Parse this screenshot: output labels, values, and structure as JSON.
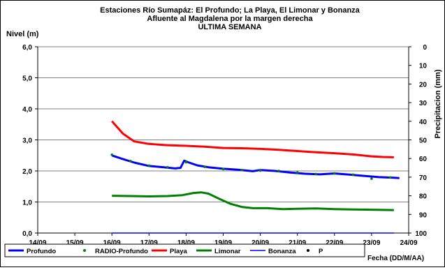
{
  "chart_data": {
    "type": "line",
    "title": [
      "Estaciones Río Sumapáz: El Profundo; La Playa, El Limonar y Bonanza",
      "Afluente al Magdalena por la margen derecha",
      "ULTIMA SEMANA"
    ],
    "ylabel": "Nivel (m)",
    "y2label": "Precipitacion (mm)",
    "xlabel": "Fecha (DD/M/AA)",
    "x_ticks": [
      "14/09",
      "15/09",
      "16/09",
      "17/09",
      "18/09",
      "19/09",
      "20/09",
      "21/09",
      "22/09",
      "23/09",
      "24/09"
    ],
    "y_ticks": [
      "0,0",
      "1,0",
      "2,0",
      "3,0",
      "4,0",
      "5,0",
      "6,0"
    ],
    "y2_ticks": [
      "0",
      "10",
      "20",
      "30",
      "40",
      "50",
      "60",
      "70",
      "80",
      "90",
      "100"
    ],
    "ylim": [
      0,
      6
    ],
    "y2lim": [
      0,
      100
    ],
    "xlim": [
      0,
      10
    ],
    "grid": "horizontal",
    "legend_position": "bottom",
    "series": [
      {
        "name": "Profundo",
        "color": "#0000ff",
        "style": "line",
        "points": [
          [
            2.0,
            2.5
          ],
          [
            2.3,
            2.38
          ],
          [
            2.6,
            2.27
          ],
          [
            3.0,
            2.16
          ],
          [
            3.4,
            2.12
          ],
          [
            3.7,
            2.08
          ],
          [
            3.85,
            2.1
          ],
          [
            3.95,
            2.33
          ],
          [
            4.05,
            2.28
          ],
          [
            4.3,
            2.18
          ],
          [
            4.6,
            2.12
          ],
          [
            5.0,
            2.07
          ],
          [
            5.4,
            2.04
          ],
          [
            5.8,
            1.99
          ],
          [
            6.0,
            2.03
          ],
          [
            6.4,
            2.0
          ],
          [
            6.8,
            1.95
          ],
          [
            7.2,
            1.91
          ],
          [
            7.6,
            1.89
          ],
          [
            8.0,
            1.92
          ],
          [
            8.4,
            1.88
          ],
          [
            8.8,
            1.84
          ],
          [
            9.2,
            1.8
          ],
          [
            9.6,
            1.78
          ],
          [
            9.75,
            1.77
          ]
        ]
      },
      {
        "name": "RADIO-Profundo",
        "color": "#008000",
        "style": "dots",
        "points": [
          [
            2.0,
            2.52
          ],
          [
            2.5,
            2.32
          ],
          [
            3.0,
            2.17
          ],
          [
            3.5,
            2.12
          ],
          [
            4.0,
            2.28
          ],
          [
            4.5,
            2.13
          ],
          [
            5.0,
            2.06
          ],
          [
            5.5,
            2.03
          ],
          [
            6.0,
            2.01
          ],
          [
            6.5,
            2.0
          ],
          [
            7.0,
            1.95
          ],
          [
            7.5,
            1.9
          ],
          [
            8.0,
            1.92
          ],
          [
            8.5,
            1.88
          ],
          [
            9.0,
            1.75
          ],
          [
            9.5,
            1.79
          ]
        ]
      },
      {
        "name": "Playa",
        "color": "#ff0000",
        "style": "line",
        "points": [
          [
            2.0,
            3.6
          ],
          [
            2.3,
            3.2
          ],
          [
            2.6,
            2.95
          ],
          [
            3.0,
            2.87
          ],
          [
            3.5,
            2.83
          ],
          [
            4.0,
            2.81
          ],
          [
            4.5,
            2.78
          ],
          [
            5.0,
            2.74
          ],
          [
            5.5,
            2.73
          ],
          [
            6.0,
            2.71
          ],
          [
            6.5,
            2.68
          ],
          [
            7.0,
            2.64
          ],
          [
            7.5,
            2.6
          ],
          [
            8.0,
            2.57
          ],
          [
            8.5,
            2.53
          ],
          [
            9.0,
            2.47
          ],
          [
            9.3,
            2.45
          ],
          [
            9.6,
            2.44
          ]
        ]
      },
      {
        "name": "Limonar",
        "color": "#008000",
        "style": "line",
        "points": [
          [
            2.0,
            1.2
          ],
          [
            2.5,
            1.19
          ],
          [
            3.0,
            1.18
          ],
          [
            3.5,
            1.19
          ],
          [
            3.9,
            1.22
          ],
          [
            4.2,
            1.29
          ],
          [
            4.4,
            1.31
          ],
          [
            4.6,
            1.27
          ],
          [
            4.9,
            1.1
          ],
          [
            5.2,
            0.94
          ],
          [
            5.5,
            0.84
          ],
          [
            5.8,
            0.8
          ],
          [
            6.2,
            0.8
          ],
          [
            6.6,
            0.77
          ],
          [
            7.0,
            0.78
          ],
          [
            7.5,
            0.79
          ],
          [
            8.0,
            0.77
          ],
          [
            8.5,
            0.76
          ],
          [
            9.0,
            0.75
          ],
          [
            9.6,
            0.74
          ]
        ]
      },
      {
        "name": "Bonanza",
        "color": "#0000ff",
        "style": "thin-line",
        "points": [
          [
            2.0,
            0.0
          ],
          [
            9.6,
            0.0
          ]
        ]
      },
      {
        "name": "P",
        "color": "#000000",
        "style": "dot",
        "points": []
      }
    ]
  }
}
